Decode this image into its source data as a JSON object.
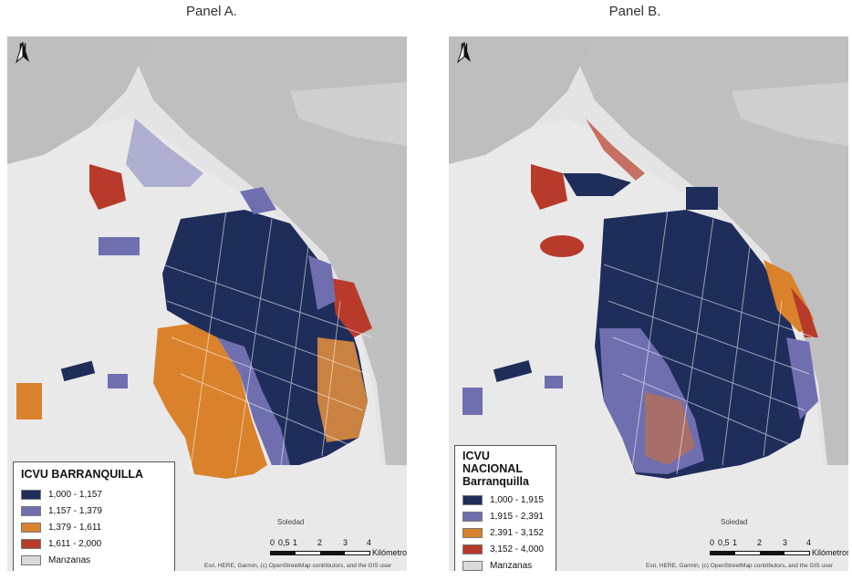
{
  "panels": [
    {
      "title": "Panel A.",
      "legend": {
        "title": "ICVU BARRANQUILLA",
        "items": [
          {
            "label": "1,000 - 1,157",
            "color": "#1f2d5a"
          },
          {
            "label": "1,157 - 1,379",
            "color": "#6f6fb0"
          },
          {
            "label": "1,379 - 1,611",
            "color": "#d9822b"
          },
          {
            "label": "1,611 - 2,000",
            "color": "#b73a2a"
          },
          {
            "label": "Manzanas",
            "color": "#d9d9d9"
          }
        ]
      },
      "place_label": "Soledad",
      "scale": {
        "ticks": [
          "0",
          "0,5",
          "1",
          "2",
          "3",
          "4"
        ],
        "unit": "Kilómetros"
      },
      "attribution": "Esri, HERE, Garmin, (c) OpenStreetMap contributors, and the GIS user"
    },
    {
      "title": "Panel B.",
      "legend": {
        "title": "ICVU NACIONAL",
        "subtitle": "Barranquilla",
        "items": [
          {
            "label": "1,000 - 1,915",
            "color": "#1f2d5a"
          },
          {
            "label": "1,915 - 2,391",
            "color": "#6f6fb0"
          },
          {
            "label": "2,391 - 3,152",
            "color": "#d9822b"
          },
          {
            "label": "3,152 - 4,000",
            "color": "#b73a2a"
          },
          {
            "label": "Manzanas",
            "color": "#d9d9d9"
          }
        ]
      },
      "place_label": "Soledad",
      "scale": {
        "ticks": [
          "0",
          "0,5",
          "1",
          "2",
          "3",
          "4"
        ],
        "unit": "Kilómetros"
      },
      "attribution": "Esri, HERE, Garmin, (c) OpenStreetMap contributors, and the GIS user"
    }
  ],
  "north_label": "N"
}
